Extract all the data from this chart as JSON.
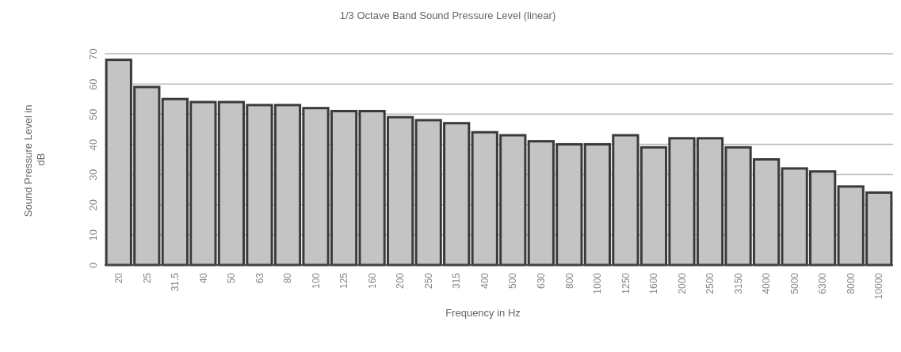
{
  "chart_data": {
    "type": "bar",
    "title": "1/3 Octave Band Sound Pressure Level (linear)",
    "xlabel": "Frequency in Hz",
    "ylabel": "Sound Pressure Level in dB",
    "categories": [
      "20",
      "25",
      "31.5",
      "40",
      "50",
      "63",
      "80",
      "100",
      "125",
      "160",
      "200",
      "250",
      "315",
      "400",
      "500",
      "630",
      "800",
      "1000",
      "1250",
      "1600",
      "2000",
      "2500",
      "3150",
      "4000",
      "5000",
      "6300",
      "8000",
      "10000"
    ],
    "values": [
      68,
      59,
      55,
      54,
      54,
      53,
      53,
      52,
      51,
      51,
      49,
      48,
      47,
      44,
      43,
      41,
      40,
      40,
      43,
      39,
      42,
      42,
      39,
      35,
      32,
      31,
      26,
      24
    ],
    "color": "#c4c4c4",
    "ylim": [
      0,
      70
    ],
    "yticks": [
      0,
      10,
      20,
      30,
      40,
      50,
      60,
      70
    ],
    "grid": "y"
  }
}
